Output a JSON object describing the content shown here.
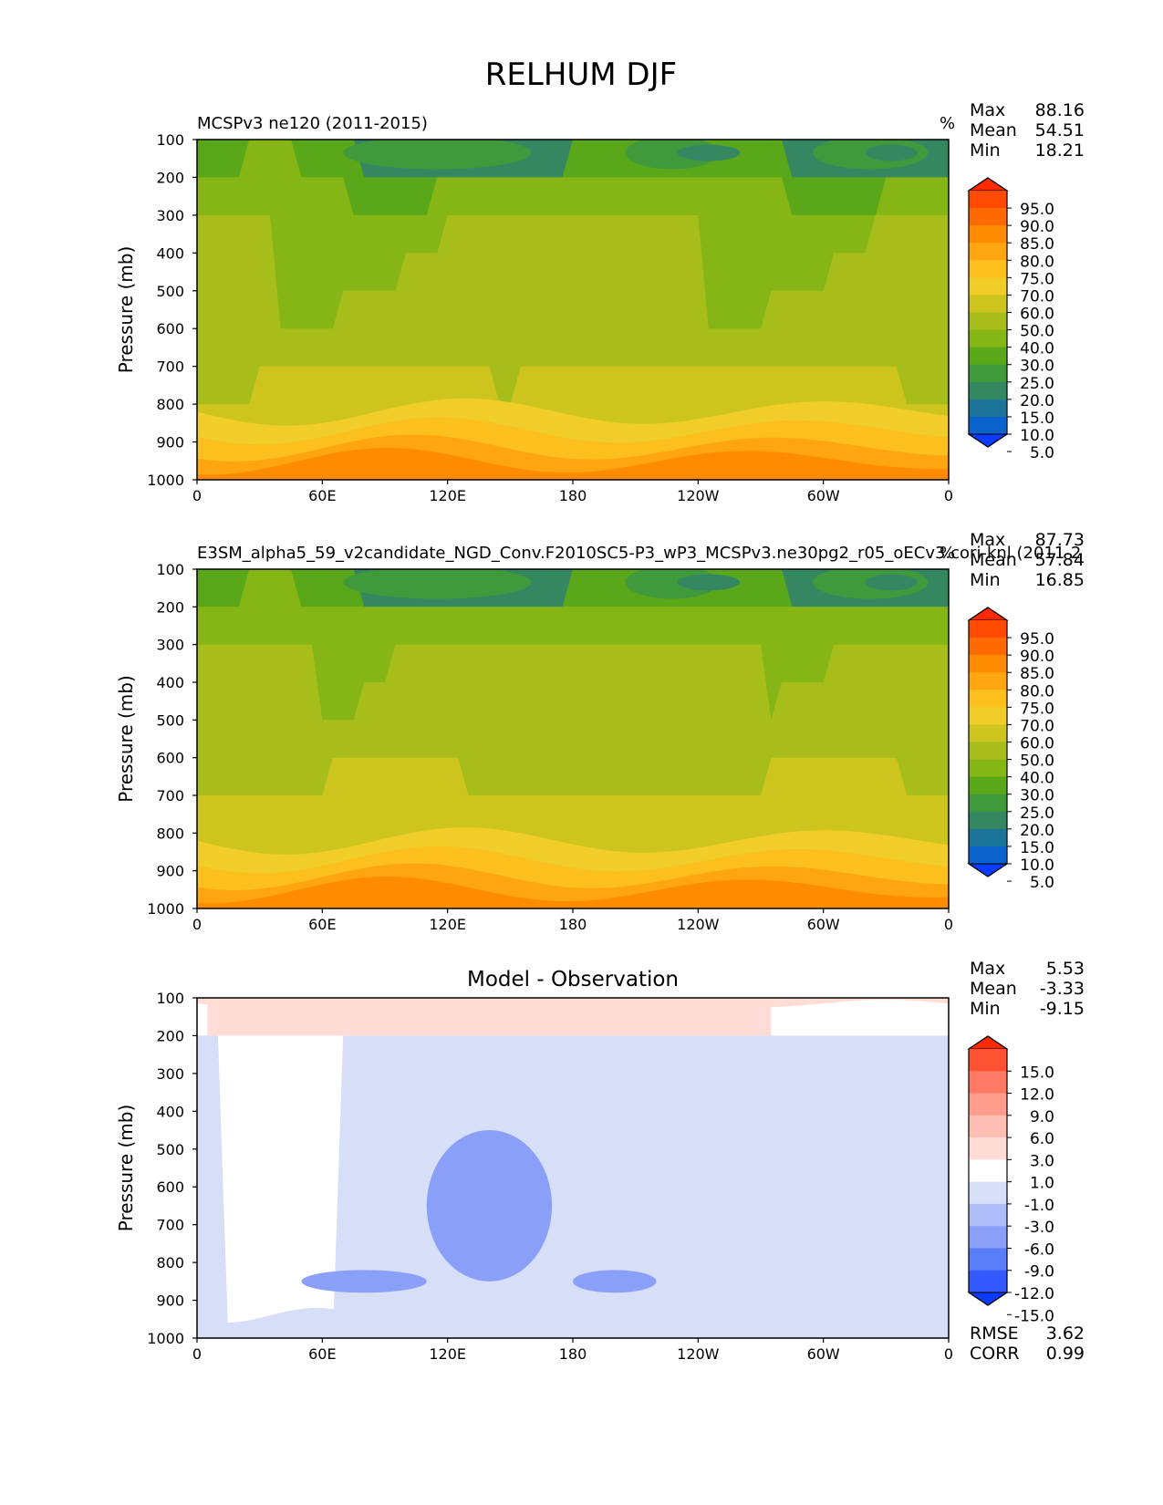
{
  "figure": {
    "title": "RELHUM DJF"
  },
  "chart_data": [
    {
      "type": "heatmap",
      "id": "test",
      "title": "MCSPv3 ne120 (2011-2015)",
      "units": "%",
      "ylabel": "Pressure (mb)",
      "xlabel": "",
      "yticks": [
        "100",
        "200",
        "300",
        "400",
        "500",
        "600",
        "700",
        "800",
        "900",
        "1000"
      ],
      "ylim": [
        1000,
        100
      ],
      "xticks": [
        "0",
        "60E",
        "120E",
        "180",
        "120W",
        "60W",
        "0"
      ],
      "xlim": [
        0,
        360
      ],
      "stats": [
        {
          "label": "Max",
          "value": "88.16"
        },
        {
          "label": "Mean",
          "value": "54.51"
        },
        {
          "label": "Min",
          "value": "18.21"
        }
      ],
      "colorbar": {
        "levels": [
          "95.0",
          "90.0",
          "85.0",
          "80.0",
          "75.0",
          "70.0",
          "60.0",
          "50.0",
          "40.0",
          "30.0",
          "25.0",
          "20.0",
          "15.0",
          "10.0",
          "5.0"
        ],
        "colors": [
          "#ff2a00",
          "#ff4a00",
          "#ff6a00",
          "#ff8c00",
          "#ffa510",
          "#fbbf1e",
          "#f0cd28",
          "#cdc41e",
          "#a7bd1a",
          "#86b516",
          "#5aa81a",
          "#409a3c",
          "#358762",
          "#1a7598",
          "#0a62cc",
          "#0a3cff"
        ]
      },
      "contours": {
        "levels": [
          30,
          40,
          50,
          60
        ],
        "colors": [
          "#5aa81a",
          "#86b516",
          "#a7bd1a",
          "#cdc41e"
        ],
        "base": "#358762",
        "bands": [
          {
            "p": 150,
            "min": 18,
            "max": 42
          },
          {
            "p": 250,
            "min": 38,
            "max": 46
          },
          {
            "p": 350,
            "min": 44,
            "max": 56
          },
          {
            "p": 450,
            "min": 44,
            "max": 56
          },
          {
            "p": 550,
            "min": 46,
            "max": 58
          },
          {
            "p": 650,
            "min": 50,
            "max": 60
          },
          {
            "p": 750,
            "min": 58,
            "max": 66
          },
          {
            "p": 850,
            "min": 64,
            "max": 75
          },
          {
            "p": 950,
            "min": 74,
            "max": 86
          }
        ]
      }
    },
    {
      "type": "heatmap",
      "id": "ref",
      "title": "E3SM_alpha5_59_v2candidate_NGD_Conv.F2010SC5-P3_wP3_MCSPv3.ne30pg2_r05_oECv3.cori-knl (2011-2",
      "units": "%",
      "ylabel": "Pressure (mb)",
      "xlabel": "",
      "yticks": [
        "100",
        "200",
        "300",
        "400",
        "500",
        "600",
        "700",
        "800",
        "900",
        "1000"
      ],
      "ylim": [
        1000,
        100
      ],
      "xticks": [
        "0",
        "60E",
        "120E",
        "180",
        "120W",
        "60W",
        "0"
      ],
      "xlim": [
        0,
        360
      ],
      "stats": [
        {
          "label": "Max",
          "value": "87.73"
        },
        {
          "label": "Mean",
          "value": "57.84"
        },
        {
          "label": "Min",
          "value": "16.85"
        }
      ],
      "colorbar": {
        "levels": [
          "95.0",
          "90.0",
          "85.0",
          "80.0",
          "75.0",
          "70.0",
          "60.0",
          "50.0",
          "40.0",
          "30.0",
          "25.0",
          "20.0",
          "15.0",
          "10.0",
          "5.0"
        ],
        "colors": [
          "#ff2a00",
          "#ff4a00",
          "#ff6a00",
          "#ff8c00",
          "#ffa510",
          "#fbbf1e",
          "#f0cd28",
          "#cdc41e",
          "#a7bd1a",
          "#86b516",
          "#5aa81a",
          "#409a3c",
          "#358762",
          "#1a7598",
          "#0a62cc",
          "#0a3cff"
        ]
      },
      "contours": {
        "levels": [
          30,
          40,
          50,
          60
        ],
        "colors": [
          "#5aa81a",
          "#86b516",
          "#a7bd1a",
          "#cdc41e"
        ],
        "base": "#358762",
        "bands": [
          {
            "p": 150,
            "min": 18,
            "max": 42
          },
          {
            "p": 250,
            "min": 40,
            "max": 50
          },
          {
            "p": 350,
            "min": 48,
            "max": 58
          },
          {
            "p": 450,
            "min": 48,
            "max": 58
          },
          {
            "p": 550,
            "min": 48,
            "max": 60
          },
          {
            "p": 650,
            "min": 54,
            "max": 64
          },
          {
            "p": 750,
            "min": 60,
            "max": 68
          },
          {
            "p": 850,
            "min": 68,
            "max": 80
          },
          {
            "p": 950,
            "min": 76,
            "max": 86
          }
        ]
      }
    },
    {
      "type": "heatmap",
      "id": "diff",
      "title": "Model - Observation",
      "units": "",
      "ylabel": "Pressure (mb)",
      "xlabel": "",
      "yticks": [
        "100",
        "200",
        "300",
        "400",
        "500",
        "600",
        "700",
        "800",
        "900",
        "1000"
      ],
      "ylim": [
        1000,
        100
      ],
      "xticks": [
        "0",
        "60E",
        "120E",
        "180",
        "120W",
        "60W",
        "0"
      ],
      "xlim": [
        0,
        360
      ],
      "stats": [
        {
          "label": "Max",
          "value": "5.53"
        },
        {
          "label": "Mean",
          "value": "-3.33"
        },
        {
          "label": "Min",
          "value": "-9.15"
        }
      ],
      "extra_stats": [
        {
          "label": "RMSE",
          "value": "3.62"
        },
        {
          "label": "CORR",
          "value": "0.99"
        }
      ],
      "colorbar": {
        "levels": [
          "15.0",
          "12.0",
          "9.0",
          "6.0",
          "3.0",
          "1.0",
          "-1.0",
          "-3.0",
          "-6.0",
          "-9.0",
          "-12.0",
          "-15.0"
        ],
        "colors": [
          "#ff2a00",
          "#ff5232",
          "#ff7a64",
          "#ff9c8c",
          "#ffbeb4",
          "#ffdcd6",
          "#ffffff",
          "#d6def8",
          "#aebcf8",
          "#8aa0f8",
          "#5a7ef8",
          "#325aff",
          "#0a3cff"
        ]
      },
      "contours": {
        "levels": [
          -3,
          -1,
          1
        ],
        "colors": [
          "#d6def8",
          "#ffffff",
          "#ffdcd6"
        ],
        "base": "#aebcf8",
        "bands": [
          {
            "p": 150,
            "min": -2,
            "max": 3
          },
          {
            "p": 250,
            "min": -3.5,
            "max": -2
          },
          {
            "p": 350,
            "min": -4,
            "max": -2
          },
          {
            "p": 450,
            "min": -4.5,
            "max": -2
          },
          {
            "p": 550,
            "min": -5,
            "max": -2
          },
          {
            "p": 650,
            "min": -5,
            "max": -2
          },
          {
            "p": 750,
            "min": -4.5,
            "max": -2
          },
          {
            "p": 850,
            "min": -4.5,
            "max": -3
          },
          {
            "p": 950,
            "min": -3,
            "max": 0
          }
        ]
      },
      "lows": [
        {
          "lon0": 110,
          "lon1": 170,
          "p0": 450,
          "p1": 850
        },
        {
          "lon0": 50,
          "lon1": 110,
          "p0": 820,
          "p1": 880
        },
        {
          "lon0": 180,
          "lon1": 220,
          "p0": 820,
          "p1": 880
        }
      ]
    }
  ]
}
